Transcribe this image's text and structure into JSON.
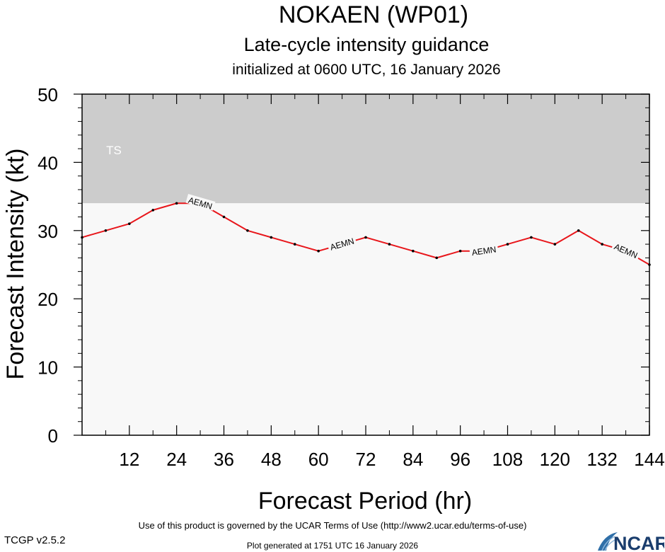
{
  "chart_data": {
    "type": "line",
    "title": "NOKAEN (WP01)",
    "subtitle": "Late-cycle intensity guidance",
    "subtitle2": "initialized at 0600 UTC, 16 January 2026",
    "xlabel": "Forecast Period (hr)",
    "ylabel": "Forecast Intensity (kt)",
    "xlim": [
      0,
      144
    ],
    "ylim": [
      0,
      50
    ],
    "xticks": [
      12,
      24,
      36,
      48,
      60,
      72,
      84,
      96,
      108,
      120,
      132,
      144
    ],
    "yticks": [
      0,
      10,
      20,
      30,
      40,
      50
    ],
    "grid": false,
    "bands": [
      {
        "label": "TS",
        "y_from": 34,
        "y_to": 50,
        "color": "#cccccc"
      },
      {
        "label": "",
        "y_from": 0,
        "y_to": 34,
        "color": "#f8f8f8"
      }
    ],
    "series": [
      {
        "name": "AEMN",
        "color": "#e8161b",
        "x": [
          0,
          6,
          12,
          18,
          24,
          30,
          36,
          42,
          48,
          54,
          60,
          66,
          72,
          78,
          84,
          90,
          96,
          102,
          108,
          114,
          120,
          126,
          132,
          138,
          144
        ],
        "y": [
          29,
          30,
          31,
          33,
          34,
          34,
          32,
          30,
          29,
          28,
          27,
          28,
          29,
          28,
          27,
          26,
          27,
          27,
          28,
          29,
          28,
          30,
          28,
          27,
          25
        ],
        "label_at_x": [
          30,
          66,
          102,
          138
        ]
      }
    ]
  },
  "footer": {
    "terms": "Use of this product is governed by the UCAR Terms of Use (http://www2.ucar.edu/terms-of-use)",
    "generated": "Plot generated at 1751 UTC   16 January 2026",
    "version": "TCGP v2.5.2",
    "logo_text": "NCAR"
  }
}
